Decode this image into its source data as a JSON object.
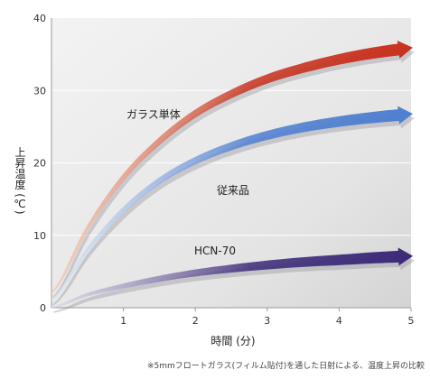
{
  "chart_data": {
    "type": "line",
    "title": "",
    "xlabel": "時間 (分)",
    "ylabel": "上昇温度 (℃)",
    "xlim": [
      0,
      5
    ],
    "ylim": [
      0,
      40
    ],
    "x_ticks": [
      "1",
      "2",
      "3",
      "4",
      "5"
    ],
    "y_ticks": [
      "0",
      "10",
      "20",
      "30",
      "40"
    ],
    "grid": "horizontal",
    "x": [
      0,
      0.5,
      1,
      1.5,
      2,
      2.5,
      3,
      3.5,
      4,
      4.5,
      5
    ],
    "series": [
      {
        "name": "ガラス単体",
        "color": "#c8321e",
        "start_color": "#f4c4a8",
        "values": [
          2,
          11,
          18,
          23,
          26.8,
          29.5,
          31.6,
          33.1,
          34.3,
          35.2,
          35.8
        ]
      },
      {
        "name": "従来品",
        "color": "#4f7fd0",
        "start_color": "#dde7f6",
        "values": [
          1,
          8,
          13.5,
          17.5,
          20.3,
          22.3,
          23.8,
          24.9,
          25.7,
          26.3,
          26.7
        ]
      },
      {
        "name": "HCN-70",
        "color": "#3c2a78",
        "start_color": "#d9d4ea",
        "values": [
          0,
          1.8,
          3,
          4,
          4.8,
          5.4,
          5.9,
          6.3,
          6.6,
          6.9,
          7.1
        ]
      }
    ],
    "annotations": [
      {
        "text": "ガラス単体",
        "series": 0
      },
      {
        "text": "従来品",
        "series": 1
      },
      {
        "text": "HCN-70",
        "series": 2
      }
    ]
  },
  "footnote": "※5mmフロートガラス(フィルム貼付)を通した日射による、温度上昇の比較"
}
